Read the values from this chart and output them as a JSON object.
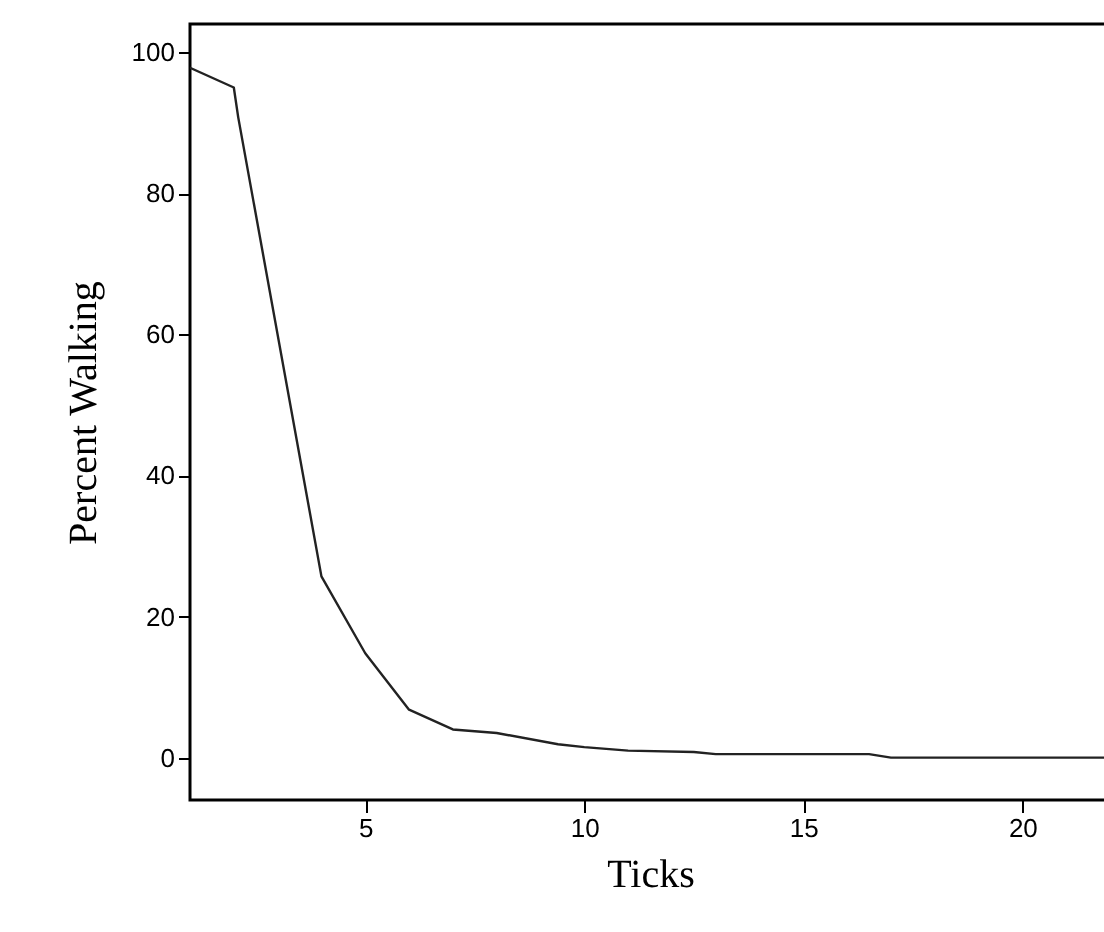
{
  "chart_data": {
    "type": "line",
    "xlabel": "Ticks",
    "ylabel": "Percent Walking",
    "x": [
      1,
      2,
      2.1,
      4,
      5,
      6,
      7,
      8,
      9.4,
      10,
      11,
      12.5,
      13,
      16.5,
      17,
      22
    ],
    "series": [
      {
        "color": "#222222",
        "values": [
          97.8,
          95,
          90.8,
          25.7,
          14.8,
          6.8,
          4,
          3.5,
          1.9,
          1.5,
          1,
          0.8,
          0.5,
          0.5,
          0,
          0
        ]
      }
    ],
    "xlim": [
      1,
      22
    ],
    "xticks": [
      5,
      10,
      15,
      20
    ],
    "ylim": [
      -6,
      104
    ],
    "yticks": [
      0,
      20,
      40,
      60,
      80,
      100
    ],
    "grid": false,
    "marker": "none",
    "line_style": "solid"
  }
}
